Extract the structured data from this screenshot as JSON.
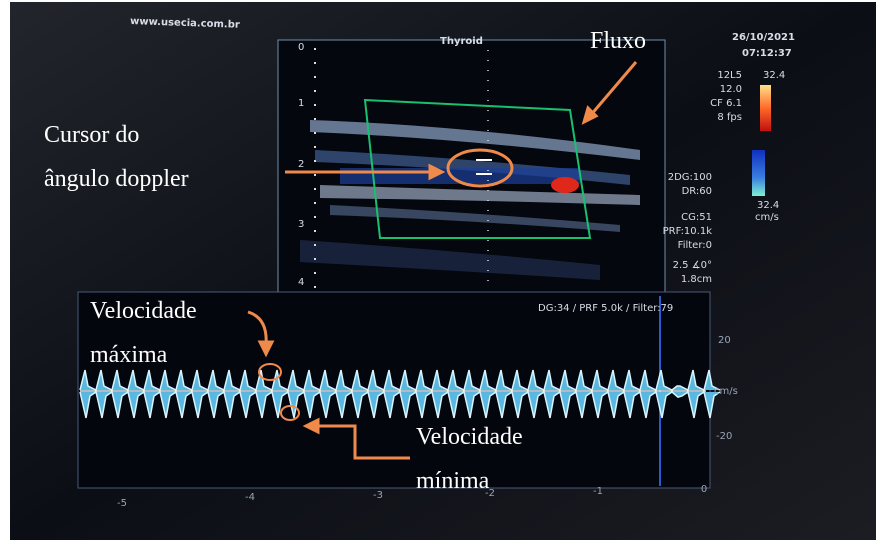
{
  "screen": {
    "website": "www.usecia.com.br",
    "title": "Thyroid",
    "date": "26/10/2021",
    "time": "07:12:37",
    "depth_labels": [
      "0",
      "1",
      "2",
      "3",
      "4"
    ],
    "color_params": [
      "12L5",
      "12.0",
      "CF 6.1",
      "8 fps"
    ],
    "color_scale": {
      "top": "32.4",
      "bottom": "32.4",
      "unit": "cm/s"
    },
    "image_params": [
      "2DG:100",
      "DR:60",
      "CG:51",
      "PRF:10.1k",
      "Filter:0",
      "2.5  ∡0°",
      "1.8cm"
    ],
    "spectral": {
      "header": "DG:34 /   PRF 5.0k   / Filter:79",
      "y_labels": [
        "20",
        "cm/s",
        "-20"
      ],
      "x_labels": [
        "-5",
        "-4",
        "-3",
        "-2",
        "-1",
        "0"
      ]
    }
  },
  "annotations": {
    "flow": "Fluxo",
    "cursor": [
      "Cursor do",
      "ângulo doppler"
    ],
    "max_velocity": [
      "Velocidade",
      "máxima"
    ],
    "min_velocity": [
      "Velocidade",
      "mínima"
    ]
  }
}
